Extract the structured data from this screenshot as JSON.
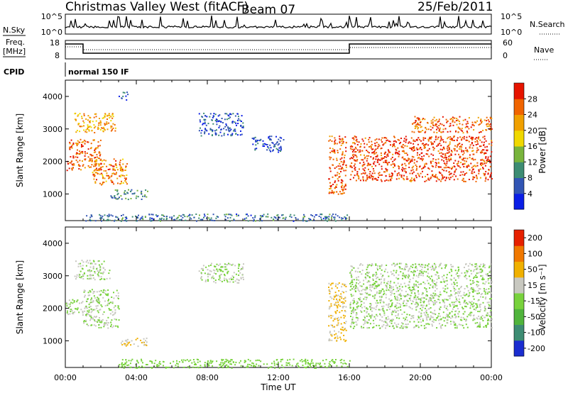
{
  "header": {
    "station": "Christmas Valley West (fitACF)",
    "beam": "Beam 07",
    "date": "25/Feb/2011"
  },
  "strip": {
    "nsky_label": "N.Sky",
    "nsky_ticks": [
      "10^5",
      "10^0"
    ],
    "nsearch_label": "N.Search",
    "nsearch_ticks": [
      "10^5",
      "10^0"
    ],
    "freq_label_line1": "Freq.",
    "freq_label_line2": "[MHz]",
    "freq_ticks": [
      "18",
      "8"
    ],
    "nave_label": "Nave",
    "nave_ticks": [
      "60",
      "0"
    ],
    "cpid_label": "CPID",
    "cpid_value": "normal 150 IF"
  },
  "chart_data": [
    {
      "type": "heatmap",
      "panel": "power",
      "ylabel": "Slant Range [km]",
      "xlabel": "Time UT",
      "ylim": [
        180,
        4500
      ],
      "xlim_hours": [
        0,
        24
      ],
      "yticks": [
        1000,
        2000,
        3000,
        4000
      ],
      "xticks": [
        "00:00",
        "04:00",
        "08:00",
        "12:00",
        "16:00",
        "20:00",
        "00:00"
      ],
      "colorbar": {
        "label": "Power [dB]",
        "range": [
          0,
          32
        ],
        "ticks": [
          "4",
          "8",
          "12",
          "16",
          "20",
          "24",
          "28"
        ],
        "colors": [
          "#0a1ee6",
          "#3255b4",
          "#3d8c73",
          "#78b43c",
          "#f0d800",
          "#f0a000",
          "#f06400",
          "#e61400"
        ]
      },
      "features": [
        {
          "t": [
            0.0,
            0.4
          ],
          "r": [
            1700,
            2100
          ],
          "v": 30
        },
        {
          "t": [
            0.2,
            2.0
          ],
          "r": [
            1750,
            2700
          ],
          "v": 26
        },
        {
          "t": [
            0.5,
            2.8
          ],
          "r": [
            2900,
            3500
          ],
          "v": 22
        },
        {
          "t": [
            1.5,
            3.5
          ],
          "r": [
            1300,
            2100
          ],
          "v": 24
        },
        {
          "t": [
            3.0,
            3.5
          ],
          "r": [
            3900,
            4150
          ],
          "v": 6
        },
        {
          "t": [
            2.5,
            4.6
          ],
          "r": [
            850,
            1150
          ],
          "v": 10
        },
        {
          "t": [
            7.5,
            10.0
          ],
          "r": [
            2800,
            3500
          ],
          "v": 6
        },
        {
          "t": [
            10.5,
            12.3
          ],
          "r": [
            2300,
            2800
          ],
          "v": 5
        },
        {
          "t": [
            14.8,
            15.8
          ],
          "r": [
            1000,
            2800
          ],
          "v": 26
        },
        {
          "t": [
            16.0,
            24.0
          ],
          "r": [
            1400,
            2800
          ],
          "v": 28
        },
        {
          "t": [
            19.5,
            24.0
          ],
          "r": [
            2900,
            3400
          ],
          "v": 26
        },
        {
          "t": [
            1.0,
            16.0
          ],
          "r": [
            180,
            400
          ],
          "v": 8
        }
      ]
    },
    {
      "type": "heatmap",
      "panel": "velocity",
      "ylabel": "Slant Range [km]",
      "xlabel": "Time UT",
      "ylim": [
        180,
        4500
      ],
      "xlim_hours": [
        0,
        24
      ],
      "yticks": [
        1000,
        2000,
        3000,
        4000
      ],
      "xticks": [
        "00:00",
        "04:00",
        "08:00",
        "12:00",
        "16:00",
        "20:00",
        "00:00"
      ],
      "colorbar": {
        "label": "Velocity [m s⁻¹]",
        "range": [
          -250,
          250
        ],
        "ticks": [
          "200",
          "100",
          "50",
          "15",
          "-15",
          "-50",
          "-100",
          "-200"
        ],
        "colors": [
          "#1a2dd0",
          "#3d8c73",
          "#50b43c",
          "#78d23c",
          "#c8c8c0",
          "#f0b000",
          "#f07800",
          "#e62000"
        ]
      },
      "features": [
        {
          "t": [
            0.0,
            1.0
          ],
          "r": [
            1800,
            2300
          ],
          "v": 0
        },
        {
          "t": [
            1.0,
            3.0
          ],
          "r": [
            1400,
            2600
          ],
          "v": 0
        },
        {
          "t": [
            0.5,
            2.5
          ],
          "r": [
            2900,
            3500
          ],
          "v": 0
        },
        {
          "t": [
            3.0,
            4.6
          ],
          "r": [
            850,
            1100
          ],
          "v": 60
        },
        {
          "t": [
            7.5,
            10.0
          ],
          "r": [
            2800,
            3400
          ],
          "v": 0
        },
        {
          "t": [
            14.8,
            15.8
          ],
          "r": [
            1000,
            2800
          ],
          "v": 70
        },
        {
          "t": [
            16.0,
            24.0
          ],
          "r": [
            1400,
            3400
          ],
          "v": 0
        },
        {
          "t": [
            3.0,
            16.0
          ],
          "r": [
            180,
            450
          ],
          "v": -40
        }
      ]
    }
  ]
}
